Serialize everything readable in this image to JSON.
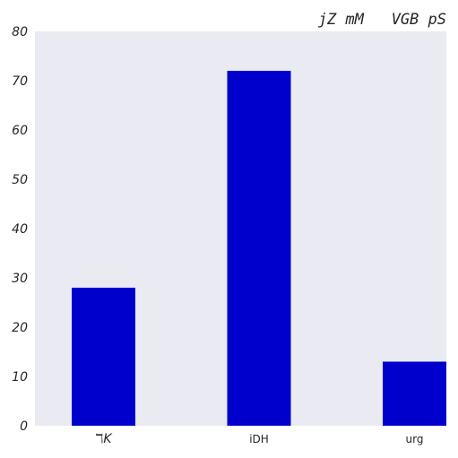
{
  "chart_data": {
    "type": "bar",
    "title": "jZ mM   VGB pS",
    "categories": [
      "ℸK",
      "iDH",
      "urg"
    ],
    "values": [
      28,
      72,
      13
    ],
    "ylim": [
      0,
      80
    ],
    "yticks": [
      0,
      10,
      20,
      30,
      40,
      50,
      60,
      70,
      80
    ],
    "xlabel": "",
    "ylabel": "",
    "grid": false,
    "colors": {
      "bar": "#0000cd",
      "plot_background": "#eaeaf2"
    }
  }
}
